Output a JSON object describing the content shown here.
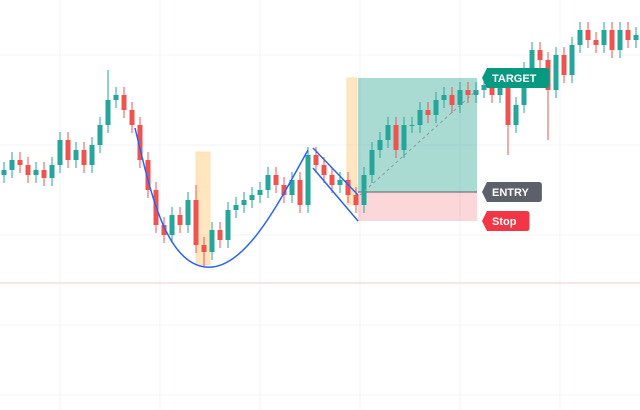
{
  "chart_data": {
    "type": "candlestick",
    "ylim": [
      0,
      410
    ],
    "up_color": "#26a69a",
    "down_color": "#ef5350",
    "open": [
      235,
      240,
      250,
      245,
      235,
      240,
      232,
      245,
      270,
      250,
      260,
      245,
      265,
      285,
      310,
      315,
      300,
      285,
      250,
      220,
      185,
      175,
      195,
      185,
      210,
      165,
      158,
      180,
      170,
      200,
      205,
      210,
      215,
      220,
      235,
      225,
      215,
      230,
      205,
      255,
      245,
      235,
      225,
      230,
      215,
      205,
      235,
      260,
      270,
      285,
      260,
      285,
      285,
      300,
      295,
      310,
      315,
      305,
      320,
      315,
      320,
      325,
      315,
      330,
      285,
      305,
      340,
      360,
      350,
      320,
      355,
      335,
      365,
      380,
      370,
      365,
      380,
      360,
      380,
      370
    ],
    "high": [
      248,
      258,
      258,
      253,
      248,
      248,
      253,
      278,
      278,
      268,
      268,
      273,
      293,
      340,
      323,
      323,
      308,
      293,
      258,
      228,
      193,
      203,
      203,
      218,
      225,
      173,
      188,
      188,
      208,
      213,
      218,
      223,
      228,
      243,
      243,
      233,
      238,
      238,
      263,
      263,
      253,
      243,
      238,
      238,
      223,
      243,
      268,
      278,
      293,
      293,
      293,
      293,
      308,
      308,
      318,
      323,
      323,
      328,
      328,
      328,
      333,
      333,
      338,
      338,
      313,
      348,
      368,
      368,
      358,
      363,
      363,
      373,
      388,
      388,
      378,
      388,
      388,
      388,
      388,
      383
    ],
    "low": [
      227,
      232,
      237,
      227,
      227,
      224,
      224,
      237,
      242,
      242,
      237,
      237,
      257,
      277,
      302,
      292,
      277,
      242,
      212,
      177,
      167,
      167,
      177,
      177,
      157,
      143,
      150,
      162,
      162,
      192,
      197,
      202,
      207,
      212,
      217,
      207,
      207,
      197,
      197,
      237,
      227,
      217,
      217,
      207,
      197,
      197,
      227,
      252,
      262,
      252,
      252,
      277,
      277,
      287,
      287,
      302,
      297,
      297,
      307,
      307,
      312,
      307,
      307,
      255,
      277,
      297,
      332,
      342,
      270,
      312,
      327,
      327,
      357,
      362,
      357,
      357,
      352,
      352,
      362,
      362
    ],
    "close": [
      240,
      250,
      245,
      235,
      240,
      232,
      245,
      270,
      250,
      260,
      245,
      265,
      285,
      310,
      315,
      300,
      285,
      250,
      220,
      185,
      175,
      195,
      185,
      210,
      165,
      158,
      180,
      170,
      200,
      205,
      210,
      215,
      220,
      235,
      225,
      215,
      230,
      205,
      255,
      245,
      235,
      225,
      230,
      215,
      205,
      235,
      260,
      270,
      285,
      260,
      285,
      285,
      300,
      295,
      310,
      315,
      305,
      320,
      315,
      320,
      325,
      315,
      330,
      285,
      305,
      340,
      360,
      350,
      320,
      355,
      335,
      365,
      380,
      370,
      365,
      380,
      360,
      380,
      370,
      375
    ],
    "target": {
      "label": "TARGET",
      "value": 332,
      "color": "#089981"
    },
    "entry": {
      "label": "ENTRY",
      "value": 218,
      "color": "#5d606b"
    },
    "stop": {
      "label": "Stop",
      "value": 189,
      "color": "#f23645"
    }
  }
}
